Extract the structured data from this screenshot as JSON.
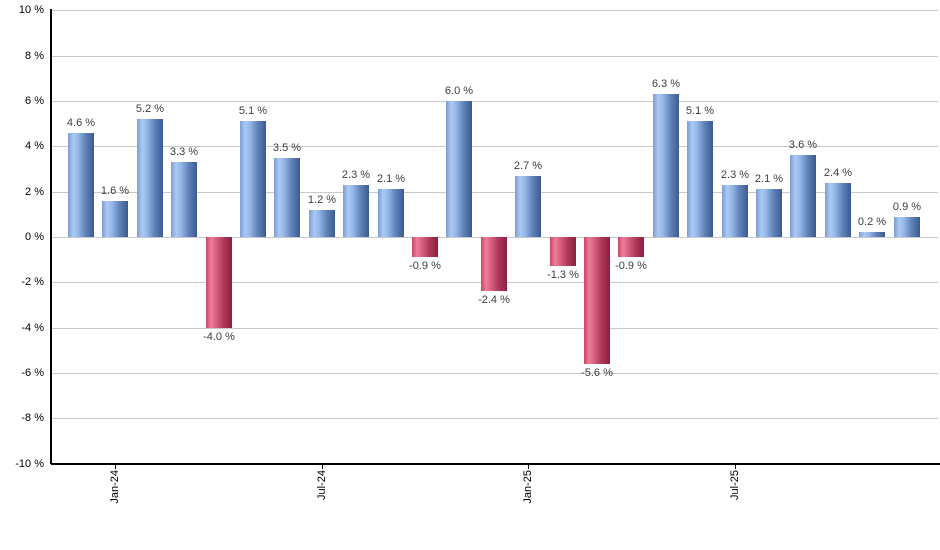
{
  "chart_data": {
    "type": "bar",
    "title": "",
    "xlabel": "",
    "ylabel": "",
    "unit": "%",
    "values": [
      4.6,
      1.6,
      5.2,
      3.3,
      -4.0,
      5.1,
      3.5,
      1.2,
      2.3,
      2.1,
      -0.9,
      6.0,
      -2.4,
      2.7,
      -1.3,
      -5.6,
      -0.9,
      6.3,
      5.1,
      2.3,
      2.1,
      3.6,
      2.4,
      0.2,
      0.9
    ],
    "value_label_suffix": " %",
    "x_ticks": [
      {
        "bar_index": 2,
        "label": "Jan-24"
      },
      {
        "bar_index": 8,
        "label": "Jul-24"
      },
      {
        "bar_index": 14,
        "label": "Jan-25"
      },
      {
        "bar_index": 20,
        "label": "Jul-25"
      }
    ],
    "y_ticks": [
      10,
      8,
      6,
      4,
      2,
      0,
      -2,
      -4,
      -6,
      -8,
      -10
    ],
    "y_tick_suffix": " %",
    "ylim": [
      -10,
      10
    ],
    "grid": "horizontal",
    "legend": "none",
    "colors": {
      "positive_bar_highlight": "#abc9f4",
      "positive_bar_edge": "#3a5a91",
      "negative_bar_highlight": "#ec7e99",
      "negative_bar_edge": "#8c1e3e",
      "gridline": "#c9c9c9",
      "axis": "#000000",
      "value_label_text": "#3c3c3c",
      "tick_label_text": "#000000",
      "background": "#ffffff"
    }
  }
}
